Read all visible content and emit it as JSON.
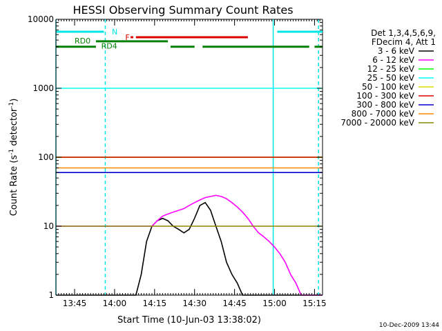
{
  "chart_data": {
    "type": "line",
    "title": "HESSI Observing Summary Count Rates",
    "xlabel": "Start Time (10-Jun-03 13:38:02)",
    "ylabel": "Count Rate (s",
    "ylabel_sup": "-1",
    "ylabel_tail": " detector",
    "ylabel_tail_sup": "-1",
    "ylabel_close": ")",
    "y_scale": "log",
    "x_range_minutes": [
      0,
      100
    ],
    "ylim": [
      1,
      10000
    ],
    "x_ticks": [
      {
        "label": "13:45",
        "t": 7
      },
      {
        "label": "14:00",
        "t": 22
      },
      {
        "label": "14:15",
        "t": 37
      },
      {
        "label": "14:30",
        "t": 52
      },
      {
        "label": "14:45",
        "t": 67
      },
      {
        "label": "15:00",
        "t": 82
      },
      {
        "label": "15:15",
        "t": 97
      }
    ],
    "y_ticks": [
      {
        "label": "1",
        "v": 1
      },
      {
        "label": "10",
        "v": 10
      },
      {
        "label": "100",
        "v": 100
      },
      {
        "label": "1000",
        "v": 1000
      },
      {
        "label": "10000",
        "v": 10000
      }
    ],
    "legend_header": [
      "Det 1,3,4,5,6,9,",
      "FDecim 4, Att 1"
    ],
    "legend_position": "right",
    "footer_date": "10-Dec-2009 13:44",
    "series": [
      {
        "name": "3 - 6 keV",
        "color": "#000000",
        "t": [
          0,
          2,
          4,
          6,
          8,
          10,
          12,
          14,
          16,
          18,
          20,
          22,
          24,
          26,
          28,
          30,
          32,
          34,
          36,
          38,
          40,
          42,
          44,
          46,
          48,
          50,
          52,
          54,
          56,
          58,
          60,
          62,
          64,
          66,
          68,
          70,
          72,
          74,
          76,
          78,
          80,
          82,
          84,
          86,
          88,
          90,
          92,
          94,
          96,
          98,
          100
        ],
        "v": [
          1,
          1,
          1,
          1,
          1,
          1,
          1,
          1,
          1,
          1,
          1,
          1,
          1,
          1,
          1,
          1,
          2,
          6,
          10,
          12,
          13,
          12,
          10,
          9,
          8,
          9,
          13,
          20,
          22,
          17,
          10,
          6,
          3,
          2,
          1.5,
          1,
          1,
          1,
          1,
          1,
          1,
          1,
          1,
          1,
          1,
          1,
          1,
          1,
          1,
          1,
          1
        ]
      },
      {
        "name": "6 - 12 keV",
        "color": "#ff00ff",
        "t": [
          0,
          2,
          4,
          6,
          8,
          10,
          12,
          14,
          16,
          18,
          20,
          22,
          24,
          26,
          28,
          30,
          32,
          34,
          36,
          38,
          40,
          42,
          44,
          46,
          48,
          50,
          52,
          54,
          56,
          58,
          60,
          62,
          64,
          66,
          68,
          70,
          72,
          74,
          76,
          78,
          80,
          82,
          84,
          86,
          88,
          90,
          92,
          94,
          96,
          98,
          100
        ],
        "v": [
          10,
          10,
          10,
          10,
          10,
          10,
          10,
          10,
          10,
          10,
          10,
          10,
          10,
          10,
          10,
          10,
          10,
          10,
          10,
          12,
          14,
          15,
          16,
          17,
          18,
          20,
          22,
          24,
          26,
          27,
          28,
          27,
          25,
          22,
          19,
          16,
          13,
          10,
          8,
          7,
          6,
          5,
          4,
          3,
          2,
          1.5,
          1,
          1,
          1,
          1,
          1
        ]
      },
      {
        "name": "12 - 25 keV",
        "color": "#00ff00",
        "t": [
          0,
          2,
          4,
          6,
          8,
          10,
          12,
          14,
          16,
          18,
          20,
          22,
          24,
          26,
          28,
          30,
          32,
          34,
          36,
          38,
          40,
          42,
          44,
          46,
          48,
          50,
          52,
          54,
          56,
          58,
          60,
          62,
          64,
          66,
          68,
          70,
          72,
          74,
          76,
          78,
          80,
          82,
          84,
          86,
          88,
          90,
          92,
          94,
          96,
          98,
          100
        ],
        "v": [
          100,
          100,
          100,
          100,
          100,
          100,
          100,
          100,
          100,
          100,
          100,
          100,
          100,
          100,
          100,
          100,
          100,
          100,
          100,
          100,
          100,
          100,
          100,
          100,
          100,
          100,
          100,
          100,
          100,
          100,
          100,
          100,
          100,
          100,
          100,
          100,
          100,
          100,
          100,
          100,
          100,
          100,
          100,
          100,
          100,
          100,
          100,
          100,
          100,
          100,
          100
        ]
      },
      {
        "name": "25 - 50 keV",
        "color": "#00ffff",
        "t": [
          0,
          2,
          4,
          6,
          8,
          10,
          12,
          14,
          16,
          18,
          20,
          22,
          24,
          26,
          28,
          30,
          32,
          34,
          36,
          38,
          40,
          42,
          44,
          46,
          48,
          50,
          52,
          54,
          56,
          58,
          60,
          62,
          64,
          66,
          68,
          70,
          72,
          74,
          76,
          78,
          80,
          82,
          84,
          86,
          88,
          90,
          92,
          94,
          96,
          98,
          100
        ],
        "v": [
          1000,
          1000,
          1000,
          1000,
          1000,
          1000,
          1000,
          1000,
          1000,
          1000,
          1000,
          1000,
          1000,
          1000,
          1000,
          1000,
          1000,
          1000,
          1000,
          1000,
          1000,
          1000,
          1000,
          1000,
          1000,
          1000,
          1000,
          1000,
          1000,
          1000,
          1000,
          1000,
          1000,
          1000,
          1000,
          1000,
          1000,
          1000,
          1000,
          1000,
          1000,
          1000,
          1000,
          1000,
          1000,
          1000,
          1000,
          1000,
          1000,
          1000,
          1000
        ]
      },
      {
        "name": "50 - 100 keV",
        "color": "#dddd00",
        "t": [
          0,
          2,
          4,
          6,
          8,
          10,
          12,
          14,
          16,
          18,
          20,
          22,
          24,
          26,
          28,
          30,
          32,
          34,
          36,
          38,
          40,
          42,
          44,
          46,
          48,
          50,
          52,
          54,
          56,
          58,
          60,
          62,
          64,
          66,
          68,
          70,
          72,
          74,
          76,
          78,
          80,
          82,
          84,
          86,
          88,
          90,
          92,
          94,
          96,
          98,
          100
        ],
        "v": [
          100,
          100,
          100,
          100,
          100,
          100,
          100,
          100,
          100,
          100,
          100,
          100,
          100,
          100,
          100,
          100,
          100,
          100,
          100,
          100,
          100,
          100,
          100,
          100,
          100,
          100,
          100,
          100,
          100,
          100,
          100,
          100,
          100,
          100,
          100,
          100,
          100,
          100,
          100,
          100,
          100,
          100,
          100,
          100,
          100,
          100,
          100,
          100,
          100,
          100,
          100
        ]
      },
      {
        "name": "100 - 300 keV",
        "color": "#dd0000",
        "t": [
          0,
          2,
          4,
          6,
          8,
          10,
          12,
          14,
          16,
          18,
          20,
          22,
          24,
          26,
          28,
          30,
          32,
          34,
          36,
          38,
          40,
          42,
          44,
          46,
          48,
          50,
          52,
          54,
          56,
          58,
          60,
          62,
          64,
          66,
          68,
          70,
          72,
          74,
          76,
          78,
          80,
          82,
          84,
          86,
          88,
          90,
          92,
          94,
          96,
          98,
          100
        ],
        "v": [
          100,
          100,
          100,
          100,
          100,
          100,
          100,
          100,
          100,
          100,
          100,
          100,
          100,
          100,
          100,
          100,
          100,
          100,
          100,
          100,
          100,
          100,
          100,
          100,
          100,
          100,
          100,
          100,
          100,
          100,
          100,
          100,
          100,
          100,
          100,
          100,
          100,
          100,
          100,
          100,
          100,
          100,
          100,
          100,
          100,
          100,
          100,
          100,
          100,
          100,
          100
        ]
      },
      {
        "name": "300 - 800 keV",
        "color": "#0000cc",
        "t": [
          0,
          2,
          4,
          6,
          8,
          10,
          12,
          14,
          16,
          18,
          20,
          22,
          24,
          26,
          28,
          30,
          32,
          34,
          36,
          38,
          40,
          42,
          44,
          46,
          48,
          50,
          52,
          54,
          56,
          58,
          60,
          62,
          64,
          66,
          68,
          70,
          72,
          74,
          76,
          78,
          80,
          82,
          84,
          86,
          88,
          90,
          92,
          94,
          96,
          98,
          100
        ],
        "v": [
          60,
          60,
          60,
          60,
          60,
          60,
          60,
          60,
          60,
          60,
          60,
          60,
          60,
          60,
          60,
          60,
          60,
          60,
          60,
          60,
          60,
          60,
          60,
          60,
          60,
          60,
          60,
          60,
          60,
          60,
          60,
          60,
          60,
          60,
          60,
          60,
          60,
          60,
          60,
          60,
          60,
          60,
          60,
          60,
          60,
          60,
          60,
          60,
          60,
          60,
          60
        ]
      },
      {
        "name": "800 - 7000 keV",
        "color": "#ff8800",
        "t": [
          0,
          2,
          4,
          6,
          8,
          10,
          12,
          14,
          16,
          18,
          20,
          22,
          24,
          26,
          28,
          30,
          32,
          34,
          36,
          38,
          40,
          42,
          44,
          46,
          48,
          50,
          52,
          54,
          56,
          58,
          60,
          62,
          64,
          66,
          68,
          70,
          72,
          74,
          76,
          78,
          80,
          82,
          84,
          86,
          88,
          90,
          92,
          94,
          96,
          98,
          100
        ],
        "v": [
          70,
          70,
          70,
          70,
          70,
          70,
          70,
          70,
          70,
          70,
          70,
          70,
          70,
          70,
          70,
          70,
          70,
          70,
          70,
          70,
          70,
          70,
          70,
          70,
          70,
          70,
          70,
          70,
          70,
          70,
          70,
          70,
          70,
          70,
          70,
          70,
          70,
          70,
          70,
          70,
          70,
          70,
          70,
          70,
          70,
          70,
          70,
          70,
          70,
          70,
          70
        ]
      },
      {
        "name": "7000 - 20000 keV",
        "color": "#888800",
        "t": [
          0,
          2,
          4,
          6,
          8,
          10,
          12,
          14,
          16,
          18,
          20,
          22,
          24,
          26,
          28,
          30,
          32,
          34,
          36,
          38,
          40,
          42,
          44,
          46,
          48,
          50,
          52,
          54,
          56,
          58,
          60,
          62,
          64,
          66,
          68,
          70,
          72,
          74,
          76,
          78,
          80,
          82,
          84,
          86,
          88,
          90,
          92,
          94,
          96,
          98,
          100
        ],
        "v": [
          10,
          10,
          10,
          10,
          10,
          10,
          10,
          10,
          10,
          10,
          10,
          10,
          10,
          10,
          10,
          10,
          10,
          10,
          10,
          10,
          10,
          10,
          10,
          10,
          10,
          10,
          10,
          10,
          10,
          10,
          10,
          10,
          10,
          10,
          10,
          10,
          10,
          10,
          10,
          10,
          10,
          10,
          10,
          10,
          10,
          10,
          10,
          10,
          10,
          10,
          10
        ]
      }
    ],
    "annotations": [
      {
        "label": "N",
        "color": "#00e5e5",
        "t": 21,
        "v": 6600
      },
      {
        "label": "F",
        "color": "#dd0000",
        "t": 26,
        "v": 5500
      },
      {
        "label": "RD0",
        "color": "#008000",
        "t": 7,
        "v": 4900
      },
      {
        "label": "RD4",
        "color": "#008000",
        "t": 17,
        "v": 4100
      }
    ],
    "flag_bars": [
      {
        "label": "N",
        "color": "#00e5e5",
        "v": 6600,
        "segments": [
          [
            0,
            18
          ],
          [
            83,
            100
          ]
        ]
      },
      {
        "label": "F",
        "color": "#dd0000",
        "v": 5500,
        "segments": [
          [
            28,
            29
          ],
          [
            30,
            72
          ]
        ]
      },
      {
        "label": "RD0",
        "color": "#008000",
        "v": 4800,
        "segments": [
          [
            15,
            42
          ]
        ]
      },
      {
        "label": "RD4",
        "color": "#008000",
        "v": 4000,
        "segments": [
          [
            0,
            15
          ],
          [
            43,
            52
          ],
          [
            55,
            95
          ],
          [
            97,
            100
          ]
        ]
      }
    ],
    "markers": [
      {
        "color": "#00e5e5",
        "t": 0,
        "style": "solid"
      },
      {
        "color": "#00e5e5",
        "t": 18.5,
        "style": "dashed"
      },
      {
        "color": "#00e5e5",
        "t": 81.5,
        "style": "solid"
      },
      {
        "color": "#00e5e5",
        "t": 98.5,
        "style": "dashed"
      }
    ]
  }
}
